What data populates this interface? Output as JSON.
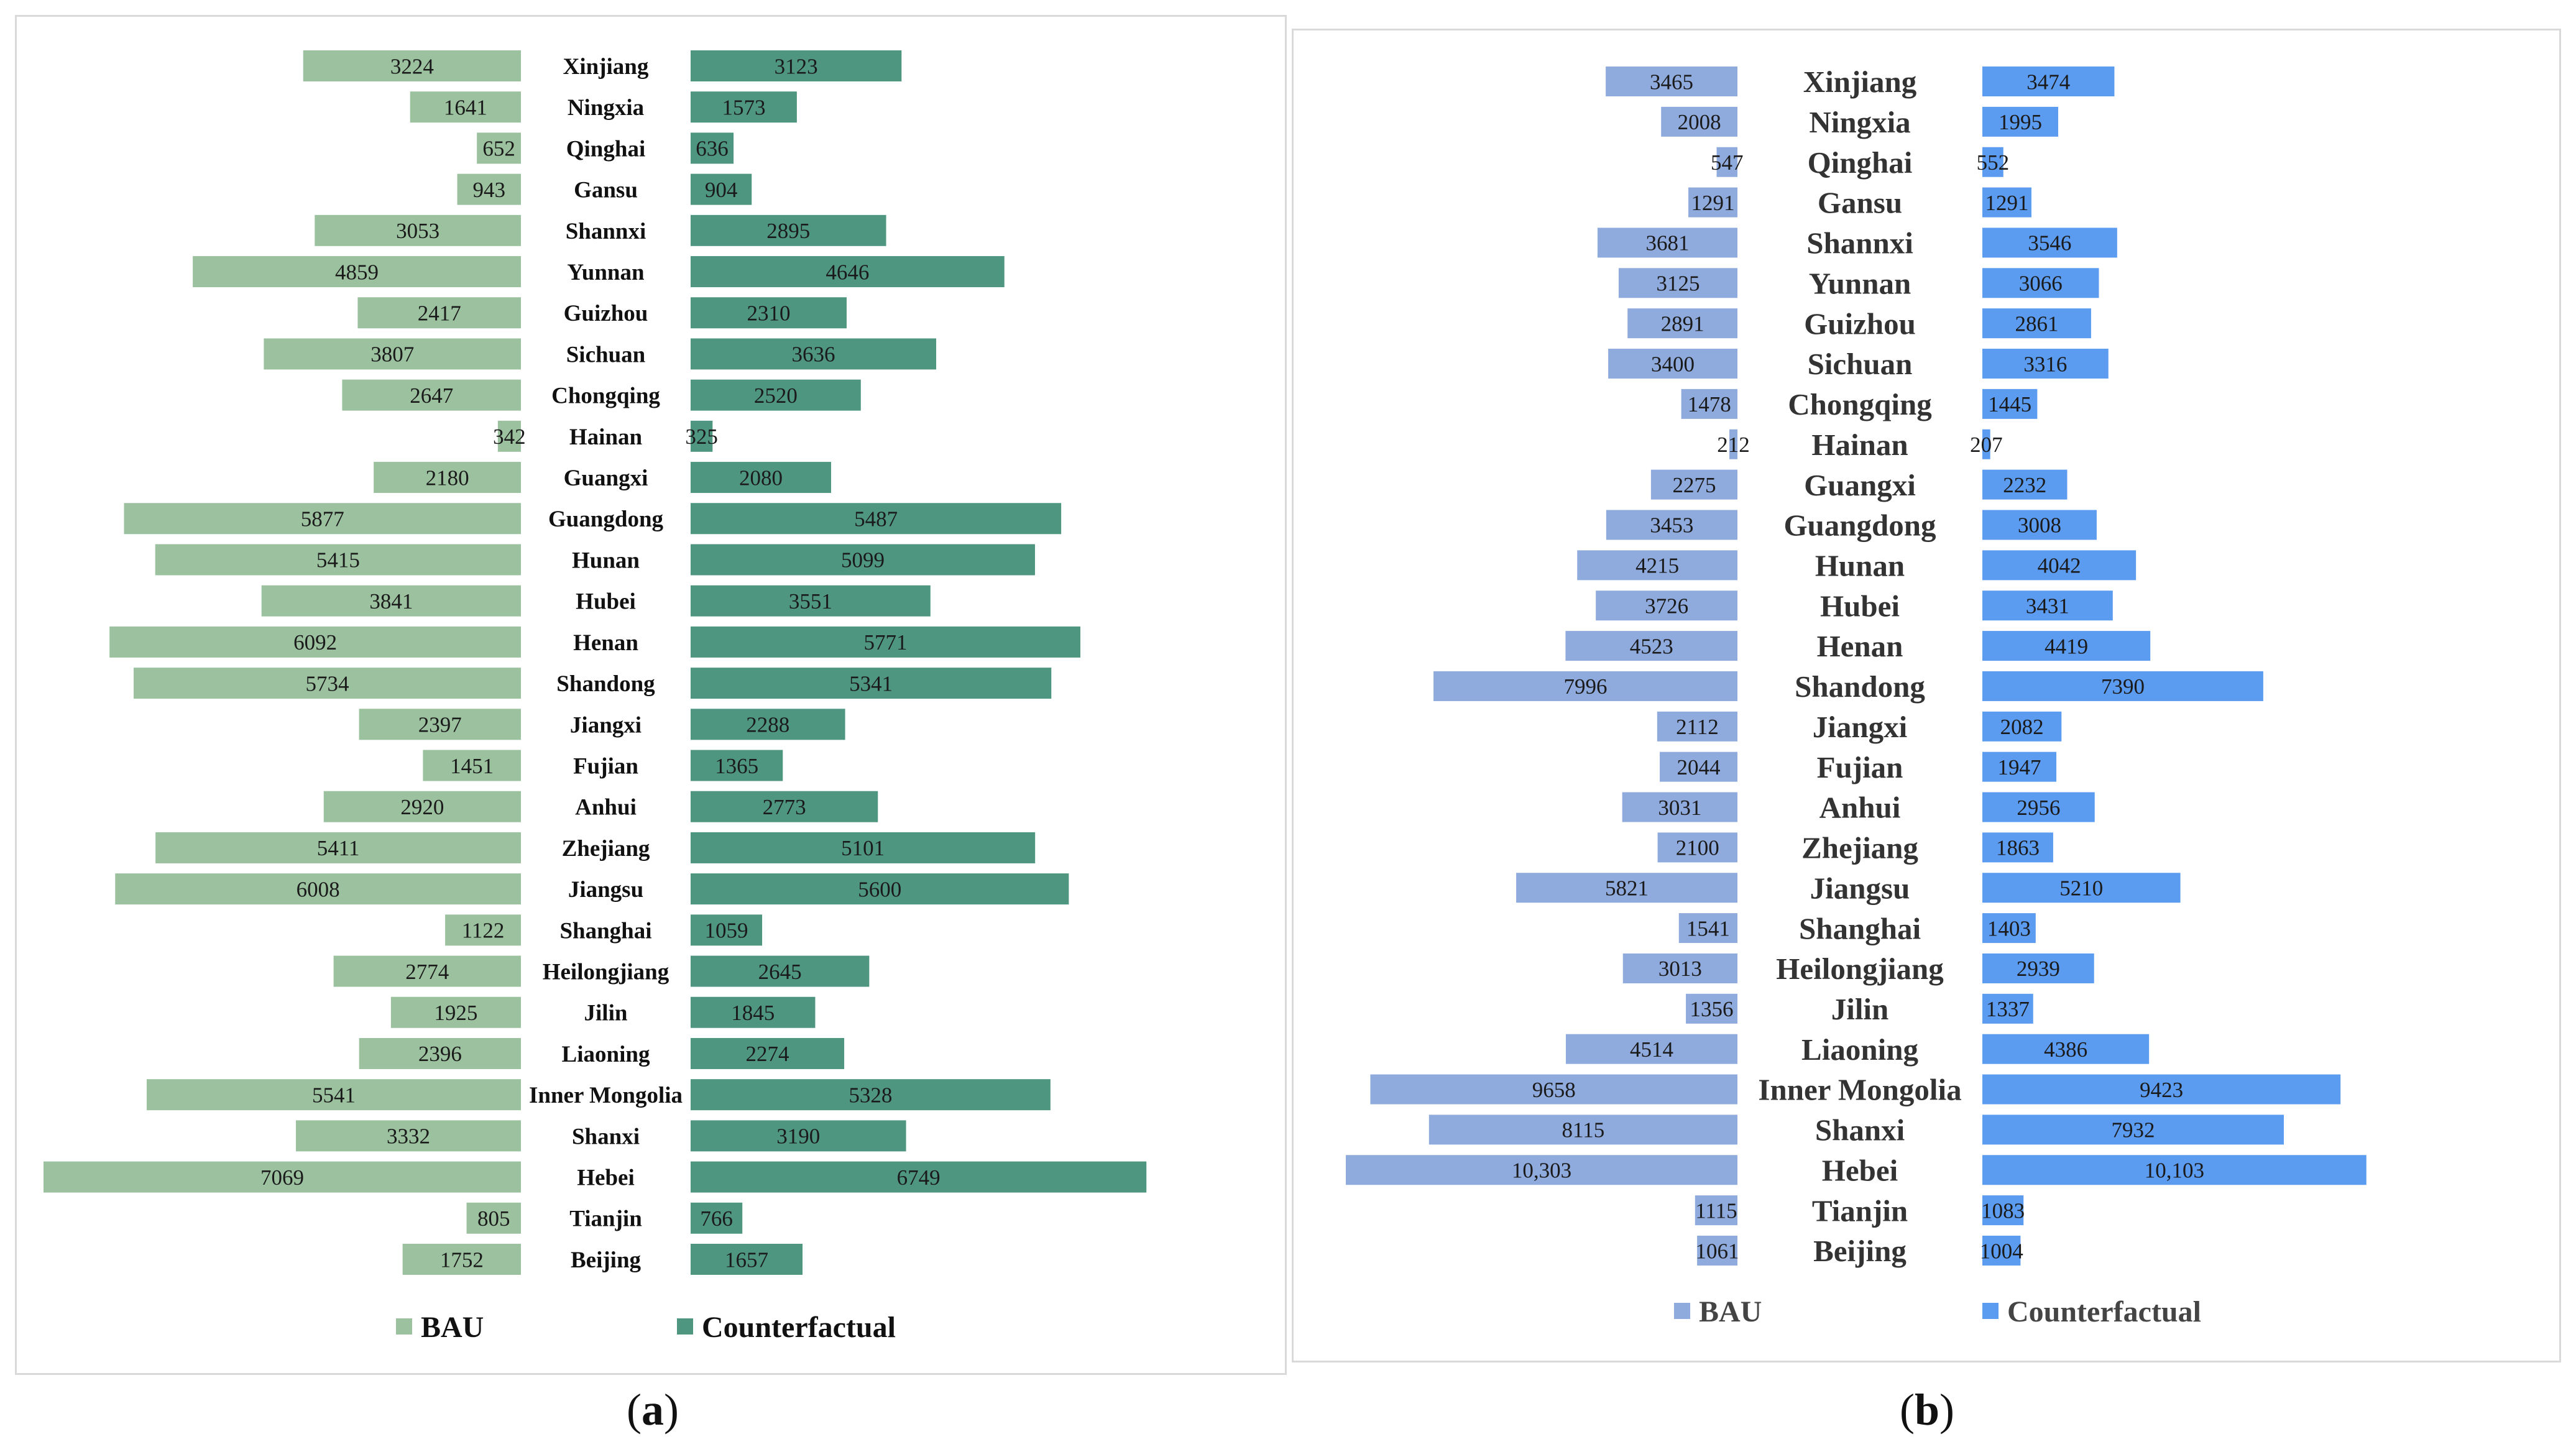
{
  "panels": [
    {
      "id": "a",
      "caption_letter": "a",
      "chart_data": {
        "type": "bar",
        "orientation": "horizontal-butterfly",
        "title": "",
        "categories": [
          "Xinjiang",
          "Ningxia",
          "Qinghai",
          "Gansu",
          "Shannxi",
          "Yunnan",
          "Guizhou",
          "Sichuan",
          "Chongqing",
          "Hainan",
          "Guangxi",
          "Guangdong",
          "Hunan",
          "Hubei",
          "Henan",
          "Shandong",
          "Jiangxi",
          "Fujian",
          "Anhui",
          "Zhejiang",
          "Jiangsu",
          "Shanghai",
          "Heilongjiang",
          "Jilin",
          "Liaoning",
          "Inner Mongolia",
          "Shanxi",
          "Hebei",
          "Tianjin",
          "Beijing"
        ],
        "series": [
          {
            "name": "BAU",
            "color": "#9bc19f",
            "values": [
              3224,
              1641,
              652,
              943,
              3053,
              4859,
              2417,
              3807,
              2647,
              342,
              2180,
              5877,
              5415,
              3841,
              6092,
              5734,
              2397,
              1451,
              2920,
              5411,
              6008,
              1122,
              2774,
              1925,
              2396,
              5541,
              3332,
              7069,
              805,
              1752
            ],
            "labels": [
              "3224",
              "1641",
              "652",
              "943",
              "3053",
              "4859",
              "2417",
              "3807",
              "2647",
              "342",
              "2180",
              "5877",
              "5415",
              "3841",
              "6092",
              "5734",
              "2397",
              "1451",
              "2920",
              "5411",
              "6008",
              "1122",
              "2774",
              "1925",
              "2396",
              "5541",
              "3332",
              "7069",
              "805",
              "1752"
            ]
          },
          {
            "name": "Counterfactual",
            "color": "#4f9680",
            "values": [
              3123,
              1573,
              636,
              904,
              2895,
              4646,
              2310,
              3636,
              2520,
              325,
              2080,
              5487,
              5099,
              3551,
              5771,
              5341,
              2288,
              1365,
              2773,
              5101,
              5600,
              1059,
              2645,
              1845,
              2274,
              5328,
              3190,
              6749,
              766,
              1657
            ],
            "labels": [
              "3123",
              "1573",
              "636",
              "904",
              "2895",
              "4646",
              "2310",
              "3636",
              "2520",
              "325",
              "2080",
              "5487",
              "5099",
              "3551",
              "5771",
              "5341",
              "2288",
              "1365",
              "2773",
              "5101",
              "5600",
              "1059",
              "2645",
              "1845",
              "2274",
              "5328",
              "3190",
              "6749",
              "766",
              "1657"
            ]
          }
        ],
        "legend": "bottom"
      }
    },
    {
      "id": "b",
      "caption_letter": "b",
      "chart_data": {
        "type": "bar",
        "orientation": "horizontal-butterfly",
        "title": "",
        "categories": [
          "Xinjiang",
          "Ningxia",
          "Qinghai",
          "Gansu",
          "Shannxi",
          "Yunnan",
          "Guizhou",
          "Sichuan",
          "Chongqing",
          "Hainan",
          "Guangxi",
          "Guangdong",
          "Hunan",
          "Hubei",
          "Henan",
          "Shandong",
          "Jiangxi",
          "Fujian",
          "Anhui",
          "Zhejiang",
          "Jiangsu",
          "Shanghai",
          "Heilongjiang",
          "Jilin",
          "Liaoning",
          "Inner Mongolia",
          "Shanxi",
          "Hebei",
          "Tianjin",
          "Beijing"
        ],
        "series": [
          {
            "name": "BAU",
            "color": "#8faadc",
            "values": [
              3465,
              2008,
              547,
              1291,
              3681,
              3125,
              2891,
              3400,
              1478,
              212,
              2275,
              3453,
              4215,
              3726,
              4523,
              7996,
              2112,
              2044,
              3031,
              2100,
              5821,
              1541,
              3013,
              1356,
              4514,
              9658,
              8115,
              10303,
              1115,
              1061
            ],
            "labels": [
              "3465",
              "2008",
              "547",
              "1291",
              "3681",
              "3125",
              "2891",
              "3400",
              "1478",
              "212",
              "2275",
              "3453",
              "4215",
              "3726",
              "4523",
              "7996",
              "2112",
              "2044",
              "3031",
              "2100",
              "5821",
              "1541",
              "3013",
              "1356",
              "4514",
              "9658",
              "8115",
              "10,303",
              "1115",
              "1061"
            ]
          },
          {
            "name": "Counterfactual",
            "color": "#5b9bf0",
            "values": [
              3474,
              1995,
              552,
              1291,
              3546,
              3066,
              2861,
              3316,
              1445,
              207,
              2232,
              3008,
              4042,
              3431,
              4419,
              7390,
              2082,
              1947,
              2956,
              1863,
              5210,
              1403,
              2939,
              1337,
              4386,
              9423,
              7932,
              10103,
              1083,
              1004
            ],
            "labels": [
              "3474",
              "1995",
              "552",
              "1291",
              "3546",
              "3066",
              "2861",
              "3316",
              "1445",
              "207",
              "2232",
              "3008",
              "4042",
              "3431",
              "4419",
              "7390",
              "2082",
              "1947",
              "2956",
              "1863",
              "5210",
              "1403",
              "2939",
              "1337",
              "4386",
              "9423",
              "7932",
              "10,103",
              "1083",
              "1004"
            ]
          }
        ],
        "legend": "bottom"
      }
    }
  ]
}
